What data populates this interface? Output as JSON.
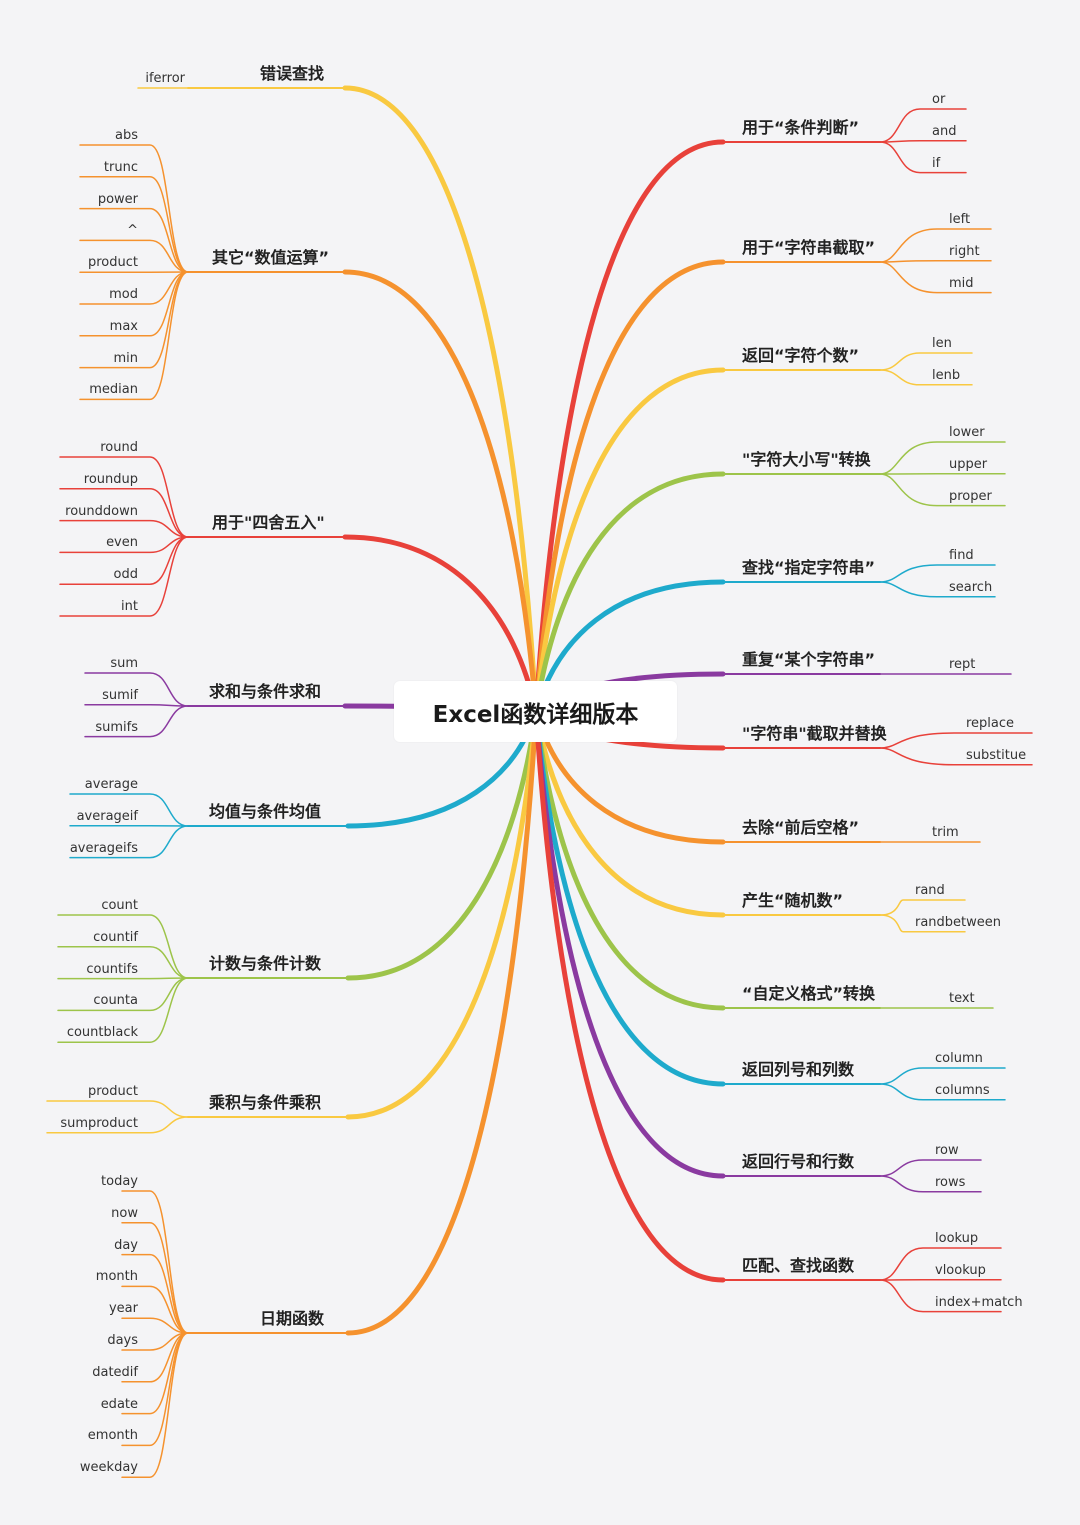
{
  "title": "Excel函数详细版本",
  "colors": {
    "red": "#e8413a",
    "orange": "#f5922e",
    "yellow": "#f9c941",
    "green": "#9dc44a",
    "blue": "#1eaacc",
    "purple": "#8a3aa0"
  },
  "left_branches": [
    {
      "label": "错误查找",
      "color": "yellow",
      "children": [
        "iferror"
      ]
    },
    {
      "label": "其它“数值运算”",
      "color": "orange",
      "children": [
        "abs",
        "trunc",
        "power",
        "^",
        "product",
        "mod",
        "max",
        "min",
        "median"
      ]
    },
    {
      "label": "用于\"四舍五入\"",
      "color": "red",
      "children": [
        "round",
        "roundup",
        "rounddown",
        "even",
        "odd",
        "int"
      ]
    },
    {
      "label": "求和与条件求和",
      "color": "purple",
      "children": [
        "sum",
        "sumif",
        "sumifs"
      ]
    },
    {
      "label": "均值与条件均值",
      "color": "blue",
      "children": [
        "average",
        "averageif",
        "averageifs"
      ]
    },
    {
      "label": "计数与条件计数",
      "color": "green",
      "children": [
        "count",
        "countif",
        "countifs",
        "counta",
        "countblack"
      ]
    },
    {
      "label": "乘积与条件乘积",
      "color": "yellow",
      "children": [
        "product",
        "sumproduct"
      ]
    },
    {
      "label": "日期函数",
      "color": "orange",
      "children": [
        "today",
        "now",
        "day",
        "month",
        "year",
        "days",
        "datedif",
        "edate",
        "emonth",
        "weekday"
      ]
    }
  ],
  "right_branches": [
    {
      "label": "用于“条件判断”",
      "color": "red",
      "children": [
        "or",
        "and",
        "if"
      ]
    },
    {
      "label": "用于“字符串截取”",
      "color": "orange",
      "children": [
        "left",
        "right",
        "mid"
      ]
    },
    {
      "label": "返回“字符个数”",
      "color": "yellow",
      "children": [
        "len",
        "lenb"
      ]
    },
    {
      "label": "\"字符大小写\"转换",
      "color": "green",
      "children": [
        "lower",
        "upper",
        "proper"
      ]
    },
    {
      "label": "查找“指定字符串”",
      "color": "blue",
      "children": [
        "find",
        "search"
      ]
    },
    {
      "label": "重复“某个字符串”",
      "color": "purple",
      "children": [
        "rept"
      ]
    },
    {
      "label": "\"字符串\"截取并替换",
      "color": "red",
      "children": [
        "replace",
        "substitue"
      ]
    },
    {
      "label": "去除“前后空格”",
      "color": "orange",
      "children": [
        "trim"
      ]
    },
    {
      "label": "产生“随机数”",
      "color": "yellow",
      "children": [
        "rand",
        "randbetween"
      ]
    },
    {
      "label": "“自定义格式”转换",
      "color": "green",
      "children": [
        "text"
      ]
    },
    {
      "label": "返回列号和列数",
      "color": "blue",
      "children": [
        "column",
        "columns"
      ]
    },
    {
      "label": "返回行号和行数",
      "color": "purple",
      "children": [
        "row",
        "rows"
      ]
    },
    {
      "label": "匹配、查找函数",
      "color": "red",
      "children": [
        "lookup",
        "vlookup",
        "index+match"
      ]
    }
  ]
}
